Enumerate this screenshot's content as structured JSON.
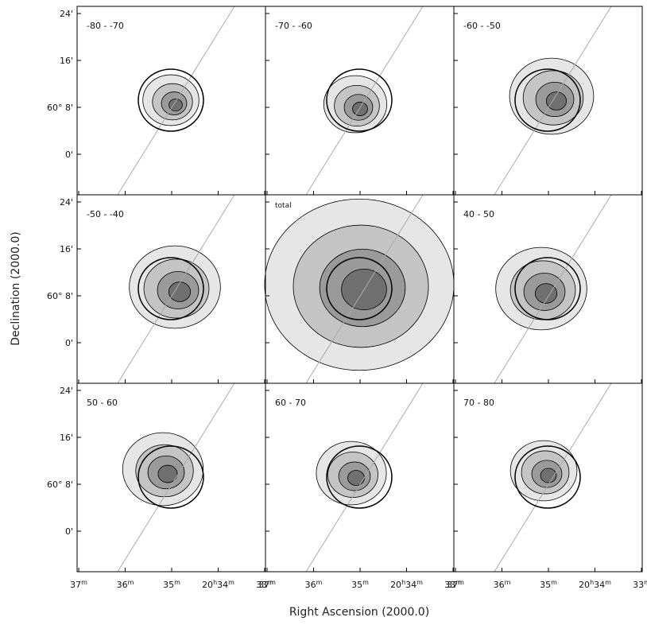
{
  "figure": {
    "x_axis_label": "Right Ascension (2000.0)",
    "y_axis_label": "Declination (2000.0)",
    "x_ticks": [
      [
        "37",
        "m"
      ],
      [
        "36",
        "m"
      ],
      [
        "35",
        "m"
      ],
      [
        "20",
        "h",
        "34",
        "m"
      ],
      [
        "33",
        "m"
      ]
    ],
    "y_ticks": [
      "24'",
      "16'",
      "60° 8'",
      "0'"
    ],
    "panels": [
      {
        "label": "-80 - -70"
      },
      {
        "label": "-70 - -60"
      },
      {
        "label": "-60 - -50"
      },
      {
        "label": "-50 - -40"
      },
      {
        "label": "total"
      },
      {
        "label": "40 - 50"
      },
      {
        "label": "50 - 60"
      },
      {
        "label": "60 - 70"
      },
      {
        "label": "70 - 80"
      }
    ]
  }
}
